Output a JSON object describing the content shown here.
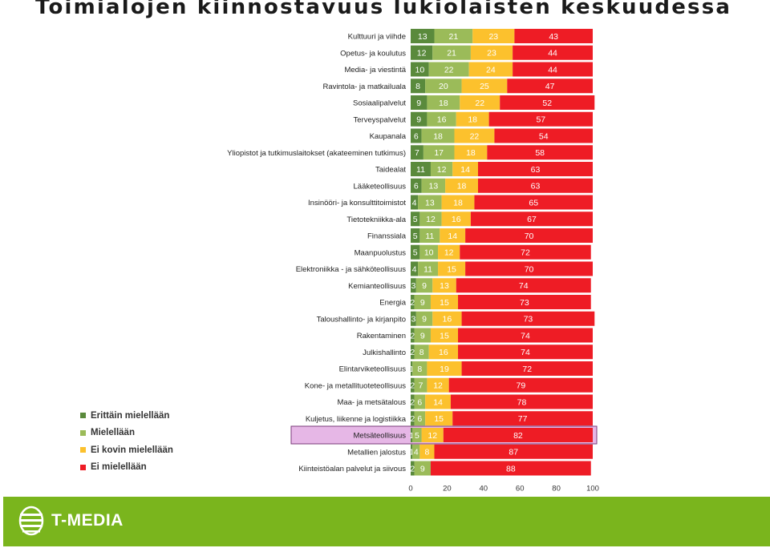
{
  "title": "Toimialojen kiinnostavuus lukiolaisten keskuudessa",
  "footer": {
    "logo_text": "T-MEDIA"
  },
  "legend": [
    {
      "label": "Erittäin mielellään",
      "color": "#5a8a3c"
    },
    {
      "label": "Mielellään",
      "color": "#9bbb59"
    },
    {
      "label": "Ei kovin mielellään",
      "color": "#fcc12d"
    },
    {
      "label": "Ei mielellään",
      "color": "#ee1c25"
    }
  ],
  "chart_data": {
    "type": "bar",
    "orientation": "horizontal",
    "stacked": true,
    "xlim": [
      0,
      100
    ],
    "xticks": [
      0,
      20,
      40,
      60,
      80,
      100
    ],
    "highlighted_category": "Metsäteollisuus",
    "highlight_color": "#e6b7e6",
    "categories": [
      "Kulttuuri ja viihde",
      "Opetus- ja koulutus",
      "Media- ja viestintä",
      "Ravintola- ja matkailuala",
      "Sosiaalipalvelut",
      "Terveyspalvelut",
      "Kaupanala",
      "Yliopistot ja tutkimuslaitokset (akateeminen tutkimus)",
      "Taidealat",
      "Lääketeollisuus",
      "Insinööri- ja konsulttitoimistot",
      "Tietotekniikka-ala",
      "Finanssiala",
      "Maanpuolustus",
      "Elektroniikka - ja sähköteollisuus",
      "Kemianteollisuus",
      "Energia",
      "Taloushallinto- ja kirjanpito",
      "Rakentaminen",
      "Julkishallinto",
      "Elintarviketeollisuus",
      "Kone- ja metallituoteteollisuus",
      "Maa- ja metsätalous",
      "Kuljetus, liikenne ja logistiikka",
      "Metsäteollisuus",
      "Metallien jalostus",
      "Kiinteistöalan palvelut ja siivous"
    ],
    "series": [
      {
        "name": "Erittäin mielellään",
        "color": "#5a8a3c",
        "values": [
          13,
          12,
          10,
          8,
          9,
          9,
          6,
          7,
          11,
          6,
          4,
          5,
          5,
          5,
          4,
          3,
          2,
          3,
          2,
          2,
          1,
          2,
          2,
          2,
          1,
          1,
          2
        ]
      },
      {
        "name": "Mielellään",
        "color": "#9bbb59",
        "values": [
          21,
          21,
          22,
          20,
          18,
          16,
          18,
          17,
          12,
          13,
          13,
          12,
          11,
          10,
          11,
          9,
          9,
          9,
          9,
          8,
          8,
          7,
          6,
          6,
          5,
          4,
          9
        ]
      },
      {
        "name": "Ei kovin mielellään",
        "color": "#fcc12d",
        "values": [
          23,
          23,
          24,
          25,
          22,
          18,
          22,
          18,
          14,
          18,
          18,
          16,
          14,
          12,
          15,
          13,
          15,
          16,
          15,
          16,
          19,
          12,
          14,
          15,
          12,
          8,
          ""
        ]
      },
      {
        "name": "Ei mielellään",
        "color": "#ee1c25",
        "values": [
          43,
          44,
          44,
          47,
          52,
          57,
          54,
          58,
          63,
          63,
          65,
          67,
          70,
          72,
          70,
          74,
          73,
          73,
          74,
          74,
          72,
          79,
          78,
          77,
          82,
          87,
          88
        ]
      }
    ]
  }
}
